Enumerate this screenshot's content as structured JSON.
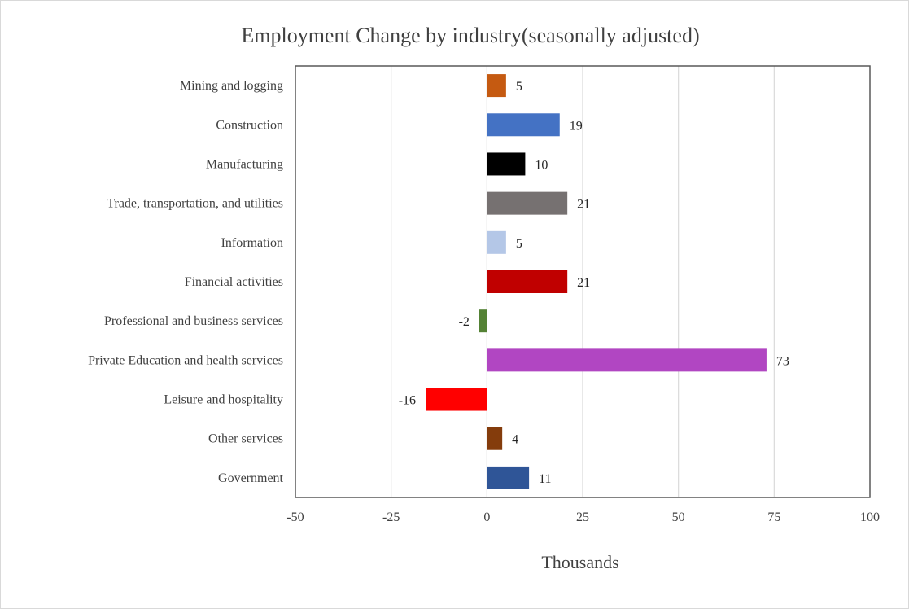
{
  "chart_data": {
    "type": "bar",
    "orientation": "horizontal",
    "title": "Employment Change by industry(seasonally adjusted)",
    "xlabel": "Thousands",
    "ylabel": "",
    "xlim": [
      -50,
      100
    ],
    "xticks": [
      -50,
      -25,
      0,
      25,
      50,
      75,
      100
    ],
    "grid": true,
    "legend": "none",
    "categories": [
      "Mining and logging",
      "Construction",
      "Manufacturing",
      "Trade, transportation, and utilities",
      "Information",
      "Financial activities",
      "Professional and business services",
      "Private Education and health services",
      "Leisure and hospitality",
      "Other services",
      "Government"
    ],
    "values": [
      5,
      19,
      10,
      21,
      5,
      21,
      -2,
      73,
      -16,
      4,
      11
    ],
    "colors": [
      "#C55A11",
      "#4472C4",
      "#000000",
      "#767171",
      "#B4C7E7",
      "#C00000",
      "#548235",
      "#B146C2",
      "#FF0000",
      "#843C0C",
      "#2F5597"
    ]
  }
}
